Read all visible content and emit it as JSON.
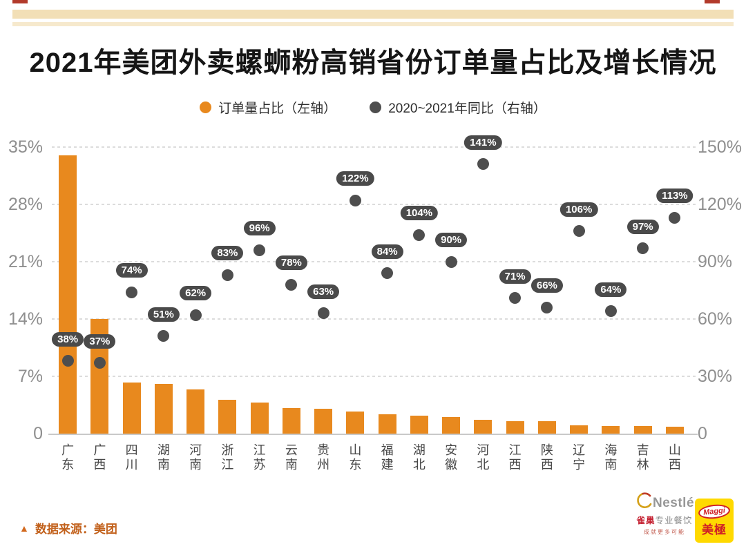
{
  "title": "2021年美团外卖螺蛳粉高销省份订单量占比及增长情况",
  "legend": {
    "bars": "订单量占比（左轴）",
    "dots": "2020~2021年同比（右轴）"
  },
  "chart_data": {
    "type": "bar",
    "subtype": "bar + scatter dual-axis combo",
    "categories": [
      "广东",
      "广西",
      "四川",
      "湖南",
      "河南",
      "浙江",
      "江苏",
      "云南",
      "贵州",
      "山东",
      "福建",
      "湖北",
      "安徽",
      "河北",
      "江西",
      "陕西",
      "辽宁",
      "海南",
      "吉林",
      "山西"
    ],
    "series": [
      {
        "name": "订单量占比（左轴）",
        "type": "bar",
        "axis": "left",
        "unit": "%",
        "values": [
          34,
          14,
          6.2,
          6.1,
          5.4,
          4.1,
          3.8,
          3.1,
          3.0,
          2.7,
          2.4,
          2.2,
          2.0,
          1.7,
          1.5,
          1.5,
          1.0,
          0.9,
          0.9,
          0.85
        ]
      },
      {
        "name": "2020~2021年同比（右轴）",
        "type": "scatter",
        "axis": "right",
        "unit": "%",
        "values": [
          38,
          37,
          74,
          51,
          62,
          83,
          96,
          78,
          63,
          122,
          84,
          104,
          90,
          141,
          71,
          66,
          106,
          64,
          97,
          113
        ]
      }
    ],
    "left_axis": {
      "ticks": [
        "35%",
        "28%",
        "21%",
        "14%",
        "7%",
        "0"
      ],
      "values": [
        35,
        28,
        21,
        14,
        7,
        0
      ],
      "max": 35
    },
    "right_axis": {
      "ticks": [
        "150%",
        "120%",
        "90%",
        "60%",
        "30%",
        "0"
      ],
      "values": [
        150,
        120,
        90,
        60,
        30,
        0
      ],
      "max": 150
    },
    "grid": true,
    "legend_position": "top-center",
    "title": "2021年美团外卖螺蛳粉高销省份订单量占比及增长情况"
  },
  "footer": {
    "source_marker": "▲",
    "source": "数据来源：美团",
    "nestle_word": "Nestlé",
    "nestle_cn_red": "雀巢",
    "nestle_cn_gray": "专业餐饮",
    "nestle_slogan": "成就更多可能",
    "maggi_word": "Maggi",
    "maggi_cn": "美極"
  },
  "colors": {
    "bar_orange": "#e8891e",
    "dot_gray": "#4e4e4e",
    "band_tan": "#f2dfb6",
    "corner_red": "#b23a2b",
    "source_orange": "#c2611c"
  }
}
